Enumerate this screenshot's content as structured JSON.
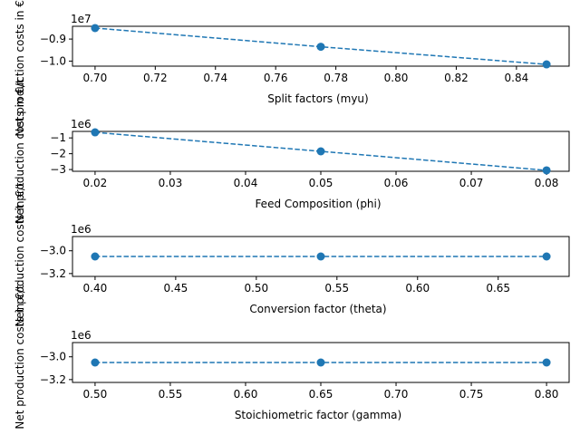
{
  "figure": {
    "background": "#ffffff",
    "line_color": "#1f77b4"
  },
  "chart_data": [
    {
      "type": "line",
      "marker": "circle",
      "linestyle": "dashed",
      "grid": false,
      "xlabel": "Split factors (myu)",
      "ylabel": "Net production costs in €/t",
      "offset_label": "1e7",
      "x": [
        0.7,
        0.775,
        0.85
      ],
      "y": [
        -8.5,
        -9.35,
        -10.15
      ],
      "xlim": [
        0.6925,
        0.8575
      ],
      "ylim": [
        -10.23,
        -8.42
      ],
      "xticks": [
        0.7,
        0.72,
        0.74,
        0.76,
        0.78,
        0.8,
        0.82,
        0.84
      ],
      "xtick_labels": [
        "0.70",
        "0.72",
        "0.74",
        "0.76",
        "0.78",
        "0.80",
        "0.82",
        "0.84"
      ],
      "yticks": [
        -9.0,
        -10.0
      ],
      "ytick_labels": [
        "−0.9",
        "−1.0"
      ]
    },
    {
      "type": "line",
      "marker": "circle",
      "linestyle": "dashed",
      "grid": false,
      "xlabel": "Feed Composition (phi)",
      "ylabel": "Net production costs in €/t",
      "offset_label": "1e6",
      "x": [
        0.02,
        0.05,
        0.08
      ],
      "y": [
        -0.65,
        -1.85,
        -3.05
      ],
      "xlim": [
        0.017,
        0.083
      ],
      "ylim": [
        -3.11,
        -0.59
      ],
      "xticks": [
        0.02,
        0.03,
        0.04,
        0.05,
        0.06,
        0.07,
        0.08
      ],
      "xtick_labels": [
        "0.02",
        "0.03",
        "0.04",
        "0.05",
        "0.06",
        "0.07",
        "0.08"
      ],
      "yticks": [
        -1,
        -2,
        -3
      ],
      "ytick_labels": [
        "−1",
        "−2",
        "−3"
      ]
    },
    {
      "type": "line",
      "marker": "circle",
      "linestyle": "dashed",
      "grid": false,
      "xlabel": "Conversion factor (theta)",
      "ylabel": "Net production costs in €/t",
      "offset_label": "1e6",
      "x": [
        0.4,
        0.54,
        0.68
      ],
      "y": [
        -3.05,
        -3.05,
        -3.05
      ],
      "xlim": [
        0.386,
        0.694
      ],
      "ylim": [
        -3.225,
        -2.875
      ],
      "xticks": [
        0.4,
        0.45,
        0.5,
        0.55,
        0.6,
        0.65
      ],
      "xtick_labels": [
        "0.40",
        "0.45",
        "0.50",
        "0.55",
        "0.60",
        "0.65"
      ],
      "yticks": [
        -3.0,
        -3.2
      ],
      "ytick_labels": [
        "−3.0",
        "−3.2"
      ]
    },
    {
      "type": "line",
      "marker": "circle",
      "linestyle": "dashed",
      "grid": false,
      "xlabel": "Stoichiometric factor (gamma)",
      "ylabel": "Net production costs in €/t",
      "offset_label": "1e6",
      "x": [
        0.5,
        0.65,
        0.8
      ],
      "y": [
        -3.05,
        -3.05,
        -3.05
      ],
      "xlim": [
        0.485,
        0.815
      ],
      "ylim": [
        -3.225,
        -2.875
      ],
      "xticks": [
        0.5,
        0.55,
        0.6,
        0.65,
        0.7,
        0.75,
        0.8
      ],
      "xtick_labels": [
        "0.50",
        "0.55",
        "0.60",
        "0.65",
        "0.70",
        "0.75",
        "0.80"
      ],
      "yticks": [
        -3.0,
        -3.2
      ],
      "ytick_labels": [
        "−3.0",
        "−3.2"
      ]
    }
  ]
}
